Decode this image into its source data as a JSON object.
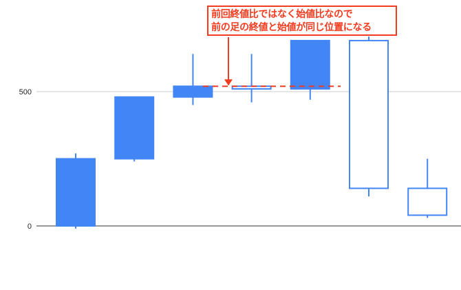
{
  "chart_data": {
    "type": "candlestick",
    "title": "",
    "xlabel": "",
    "ylabel": "",
    "ylim": [
      -60,
      780
    ],
    "y_ticks": [
      0,
      500
    ],
    "y_tick_labels": [
      "0",
      "500"
    ],
    "grid": true,
    "rising_style": "filled",
    "falling_style": "hollow",
    "color": "#4285f4",
    "candles": [
      {
        "low": -10,
        "open": 0,
        "close": 250,
        "high": 270
      },
      {
        "low": 240,
        "open": 250,
        "close": 480,
        "high": 480
      },
      {
        "low": 450,
        "open": 480,
        "close": 520,
        "high": 640
      },
      {
        "low": 460,
        "open": 520,
        "close": 510,
        "high": 640
      },
      {
        "low": 470,
        "open": 510,
        "close": 690,
        "high": 690
      },
      {
        "low": 110,
        "open": 690,
        "close": 140,
        "high": 705
      },
      {
        "low": 30,
        "open": 140,
        "close": 40,
        "high": 250
      }
    ],
    "annotation": {
      "lines": [
        "前回終値比ではなく始値比なので",
        "前の足の終値と始値が同じ位置になる"
      ],
      "color": "#f23b1f",
      "reference_value": 520
    }
  }
}
